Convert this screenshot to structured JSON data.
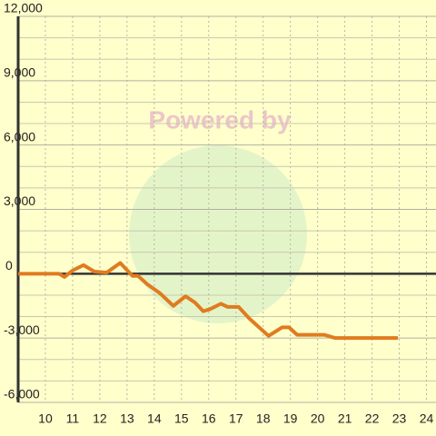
{
  "chart_data": {
    "type": "line",
    "watermark": "Powered by",
    "x": [
      9.0,
      10.5,
      10.7,
      11.0,
      11.4,
      11.8,
      12.25,
      12.75,
      13.2,
      13.4,
      13.75,
      14.2,
      14.7,
      15.15,
      15.5,
      15.8,
      16.05,
      16.45,
      16.7,
      17.1,
      17.5,
      18.2,
      18.45,
      18.7,
      18.95,
      19.25,
      20.25,
      20.65,
      22.95
    ],
    "series": [
      {
        "color": "#e07b20",
        "values": [
          0,
          0,
          -150,
          150,
          400,
          100,
          50,
          500,
          -100,
          -100,
          -500,
          -900,
          -1500,
          -1050,
          -1350,
          -1750,
          -1650,
          -1400,
          -1550,
          -1550,
          -2100,
          -2900,
          -2700,
          -2500,
          -2500,
          -2850,
          -2850,
          -3000,
          -3000
        ]
      }
    ],
    "xlim": [
      9,
      24.35
    ],
    "ylim": [
      -6000,
      12000
    ],
    "xticks": [
      10,
      11,
      12,
      13,
      14,
      15,
      16,
      17,
      18,
      19,
      20,
      21,
      22,
      23,
      24
    ],
    "yticks": [
      {
        "value": -6000,
        "label": "-6,000"
      },
      {
        "value": -3000,
        "label": "-3,000"
      },
      0,
      {
        "value": 3000,
        "label": "3,000"
      },
      {
        "value": 6000,
        "label": "6,000"
      },
      {
        "value": 9000,
        "label": "9,000"
      },
      {
        "value": 12000,
        "label": "12,000"
      }
    ],
    "minor_yticks": [
      -5000,
      -4000,
      -2000,
      -1000,
      1000,
      2000,
      4000,
      5000,
      7000,
      8000,
      10000,
      11000
    ],
    "grid": true
  }
}
